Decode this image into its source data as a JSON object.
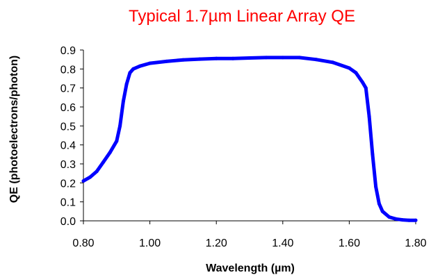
{
  "chart_data": {
    "type": "line",
    "title": "Typical 1.7µm Linear Array QE",
    "xlabel": "Wavelength (µm)",
    "ylabel": "QE (photoelectrons/photon)",
    "xlim": [
      0.8,
      1.8
    ],
    "ylim": [
      0.0,
      0.9
    ],
    "x_ticks": [
      "0.80",
      "1.00",
      "1.20",
      "1.40",
      "1.60",
      "1.80"
    ],
    "y_ticks": [
      "0.0",
      "0.1",
      "0.2",
      "0.3",
      "0.4",
      "0.5",
      "0.6",
      "0.7",
      "0.8",
      "0.9"
    ],
    "grid": false,
    "legend": false,
    "series": [
      {
        "color": "#0000ff",
        "points": [
          [
            0.8,
            0.21
          ],
          [
            0.82,
            0.23
          ],
          [
            0.84,
            0.26
          ],
          [
            0.86,
            0.31
          ],
          [
            0.88,
            0.36
          ],
          [
            0.9,
            0.42
          ],
          [
            0.91,
            0.5
          ],
          [
            0.92,
            0.63
          ],
          [
            0.93,
            0.72
          ],
          [
            0.94,
            0.78
          ],
          [
            0.95,
            0.8
          ],
          [
            0.97,
            0.815
          ],
          [
            1.0,
            0.83
          ],
          [
            1.05,
            0.84
          ],
          [
            1.1,
            0.848
          ],
          [
            1.15,
            0.852
          ],
          [
            1.2,
            0.855
          ],
          [
            1.25,
            0.855
          ],
          [
            1.3,
            0.858
          ],
          [
            1.35,
            0.86
          ],
          [
            1.4,
            0.86
          ],
          [
            1.45,
            0.86
          ],
          [
            1.5,
            0.85
          ],
          [
            1.55,
            0.835
          ],
          [
            1.6,
            0.805
          ],
          [
            1.62,
            0.78
          ],
          [
            1.64,
            0.73
          ],
          [
            1.65,
            0.7
          ],
          [
            1.66,
            0.55
          ],
          [
            1.67,
            0.35
          ],
          [
            1.68,
            0.18
          ],
          [
            1.69,
            0.09
          ],
          [
            1.7,
            0.05
          ],
          [
            1.72,
            0.02
          ],
          [
            1.74,
            0.01
          ],
          [
            1.76,
            0.005
          ],
          [
            1.78,
            0.003
          ],
          [
            1.8,
            0.003
          ]
        ]
      }
    ]
  },
  "colors": {
    "title": "#ff0000",
    "series": "#0000ff",
    "axis": "#000000"
  }
}
